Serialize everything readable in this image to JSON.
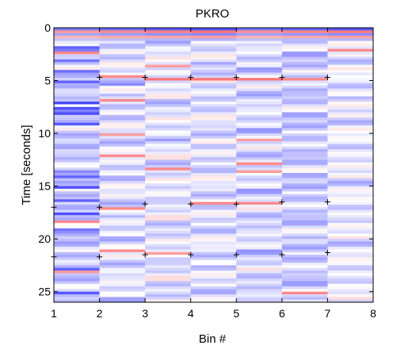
{
  "chart_data": {
    "type": "heatmap",
    "title": "PKRO",
    "xlabel": "Bin #",
    "ylabel": "Time [seconds]",
    "xlim": [
      1,
      8
    ],
    "ylim": [
      0,
      26
    ],
    "y_reversed": true,
    "xticks": [
      1,
      2,
      3,
      4,
      5,
      6,
      7,
      8
    ],
    "yticks": [
      0,
      5,
      10,
      15,
      20,
      25
    ],
    "grid": false,
    "legend": "none",
    "columns": 7,
    "time_rows": 104,
    "row_seconds": 0.25,
    "colormap": {
      "negative": "#3b3bff",
      "zero": "#ffffff",
      "positive": "#ff3b3b"
    },
    "column_base": [
      -0.28,
      -0.16,
      -0.14,
      -0.16,
      -0.2,
      -0.26,
      -0.12
    ],
    "bands": [
      {
        "time": 0.0,
        "col": -1,
        "value": -0.9
      },
      {
        "time": 0.25,
        "col": -1,
        "value": 0.7
      },
      {
        "time": 0.5,
        "col": -1,
        "value": -0.6
      },
      {
        "time": 0.75,
        "col": -1,
        "value": 0.5
      },
      {
        "time": 1.0,
        "col": -1,
        "value": -0.4
      },
      {
        "time": 1.75,
        "col": 0,
        "value": -0.8
      },
      {
        "time": 2.25,
        "col": 0,
        "value": 0.6
      },
      {
        "time": 2.0,
        "col": 6,
        "value": 0.6
      },
      {
        "time": 3.0,
        "col": 0,
        "value": -0.7
      },
      {
        "time": 3.5,
        "col": 2,
        "value": 0.5
      },
      {
        "time": 4.0,
        "col": 0,
        "value": -0.75
      },
      {
        "time": 4.5,
        "col": 1,
        "value": 0.6
      },
      {
        "time": 4.75,
        "col": 2,
        "value": 0.7
      },
      {
        "time": 4.75,
        "col": 3,
        "value": 0.7
      },
      {
        "time": 4.75,
        "col": 4,
        "value": 0.7
      },
      {
        "time": 4.75,
        "col": 5,
        "value": 0.6
      },
      {
        "time": 5.0,
        "col": 0,
        "value": -0.8
      },
      {
        "time": 5.25,
        "col": 1,
        "value": -0.6
      },
      {
        "time": 6.75,
        "col": 1,
        "value": 0.6
      },
      {
        "time": 7.0,
        "col": 0,
        "value": -0.95
      },
      {
        "time": 7.5,
        "col": 0,
        "value": -0.9
      },
      {
        "time": 8.0,
        "col": 0,
        "value": -0.9
      },
      {
        "time": 9.0,
        "col": 0,
        "value": -0.85
      },
      {
        "time": 10.0,
        "col": 1,
        "value": 0.5
      },
      {
        "time": 10.5,
        "col": 4,
        "value": 0.5
      },
      {
        "time": 12.0,
        "col": 1,
        "value": 0.6
      },
      {
        "time": 12.75,
        "col": 4,
        "value": 0.6
      },
      {
        "time": 13.25,
        "col": 2,
        "value": 0.6
      },
      {
        "time": 13.5,
        "col": 4,
        "value": 0.5
      },
      {
        "time": 14.0,
        "col": 0,
        "value": -0.8
      },
      {
        "time": 15.0,
        "col": 0,
        "value": -0.9
      },
      {
        "time": 16.25,
        "col": 0,
        "value": -0.8
      },
      {
        "time": 16.5,
        "col": 3,
        "value": 0.6
      },
      {
        "time": 16.5,
        "col": 4,
        "value": 0.6
      },
      {
        "time": 17.0,
        "col": 1,
        "value": 0.6
      },
      {
        "time": 17.5,
        "col": 0,
        "value": -0.9
      },
      {
        "time": 18.25,
        "col": 0,
        "value": 0.6
      },
      {
        "time": 19.0,
        "col": 0,
        "value": -0.7
      },
      {
        "time": 21.0,
        "col": 1,
        "value": 0.6
      },
      {
        "time": 21.25,
        "col": 2,
        "value": 0.5
      },
      {
        "time": 22.75,
        "col": 0,
        "value": -0.8
      },
      {
        "time": 23.0,
        "col": 0,
        "value": 0.5
      },
      {
        "time": 25.0,
        "col": 0,
        "value": -0.85
      },
      {
        "time": 25.0,
        "col": 5,
        "value": 0.6
      }
    ],
    "markers": [
      {
        "x": 2,
        "y": 4.7
      },
      {
        "x": 3,
        "y": 4.7
      },
      {
        "x": 4,
        "y": 4.7
      },
      {
        "x": 5,
        "y": 4.7
      },
      {
        "x": 6,
        "y": 4.7
      },
      {
        "x": 7,
        "y": 4.7
      },
      {
        "x": 1,
        "y": 17.0
      },
      {
        "x": 2,
        "y": 17.0
      },
      {
        "x": 3,
        "y": 16.7
      },
      {
        "x": 4,
        "y": 16.7
      },
      {
        "x": 5,
        "y": 16.7
      },
      {
        "x": 6,
        "y": 16.5
      },
      {
        "x": 7,
        "y": 16.5
      },
      {
        "x": 1,
        "y": 21.7
      },
      {
        "x": 2,
        "y": 21.7
      },
      {
        "x": 3,
        "y": 21.5
      },
      {
        "x": 4,
        "y": 21.5
      },
      {
        "x": 5,
        "y": 21.5
      },
      {
        "x": 6,
        "y": 21.5
      },
      {
        "x": 7,
        "y": 21.3
      }
    ]
  }
}
